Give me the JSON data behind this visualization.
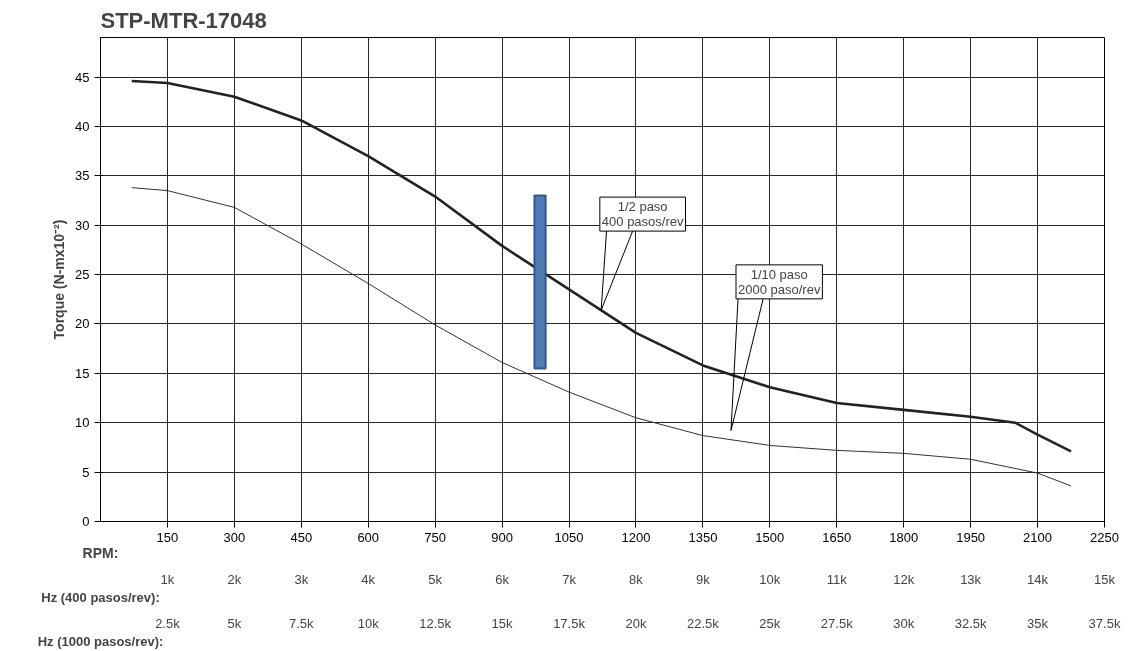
{
  "chart_data": {
    "type": "line",
    "title": "STP-MTR-17048",
    "xlabel": "RPM:",
    "ylabel": "Torque (N-mx10⁻²)",
    "xlim": [
      0,
      2250
    ],
    "xticks": [
      150,
      300,
      450,
      600,
      750,
      900,
      1050,
      1200,
      1350,
      1500,
      1650,
      1800,
      1950,
      2100,
      2250
    ],
    "ylim": [
      0,
      49
    ],
    "yticks": [
      0,
      5,
      10,
      15,
      20,
      25,
      30,
      35,
      40,
      45
    ],
    "x2label": "Hz (400 pasos/rev):",
    "x2lim": [
      0,
      15000
    ],
    "x2ticks": [
      {
        "value": 1000,
        "label": "1k"
      },
      {
        "value": 2000,
        "label": "2k"
      },
      {
        "value": 3000,
        "label": "3k"
      },
      {
        "value": 4000,
        "label": "4k"
      },
      {
        "value": 5000,
        "label": "5k"
      },
      {
        "value": 6000,
        "label": "6k"
      },
      {
        "value": 7000,
        "label": "7k"
      },
      {
        "value": 8000,
        "label": "8k"
      },
      {
        "value": 9000,
        "label": "9k"
      },
      {
        "value": 10000,
        "label": "10k"
      },
      {
        "value": 11000,
        "label": "11k"
      },
      {
        "value": 12000,
        "label": "12k"
      },
      {
        "value": 13000,
        "label": "13k"
      },
      {
        "value": 14000,
        "label": "14k"
      },
      {
        "value": 15000,
        "label": "15k"
      }
    ],
    "grid": true,
    "marker": "none",
    "line_style": "solid",
    "series": [
      {
        "color": "#222222",
        "x": [
          70,
          150,
          300,
          450,
          600,
          750,
          900,
          1050,
          1200,
          1350,
          1500,
          1650,
          1800,
          1950,
          2050,
          2100,
          2175
        ],
        "values": [
          44.6,
          44.4,
          43.0,
          40.6,
          37.0,
          32.9,
          27.9,
          23.5,
          19.1,
          15.8,
          13.6,
          12.0,
          11.3,
          10.6,
          10.0,
          8.8,
          7.1
        ]
      },
      {
        "color": "#333333",
        "x": [
          70,
          150,
          300,
          450,
          600,
          750,
          900,
          1050,
          1200,
          1350,
          1500,
          1650,
          1800,
          1950,
          2100,
          2175
        ],
        "values": [
          33.8,
          33.5,
          31.8,
          28.1,
          24.1,
          19.9,
          16.1,
          13.1,
          10.5,
          8.7,
          7.7,
          7.2,
          6.9,
          6.3,
          4.9,
          3.6
        ]
      },
      {
        "type": "bar",
        "color": "#4f7bb8",
        "x": [
          985
        ],
        "base": [
          15.5
        ],
        "values": [
          17.5
        ]
      }
    ],
    "annotations": [
      {
        "text": "1/2 paso\n400 pasos/rev",
        "x": 1122,
        "y": 21.4
      },
      "1/10 paso\n2000 paso/rev",
      "Hz (1000 pasos/rev):",
      "2.5k",
      "5k",
      "7.5k",
      "10k",
      "12.5k",
      "15k",
      "17.5k",
      "20k",
      "22.5k",
      "25k",
      "27.5k",
      "30k",
      "32.5k",
      "35k",
      "37.5k"
    ]
  }
}
